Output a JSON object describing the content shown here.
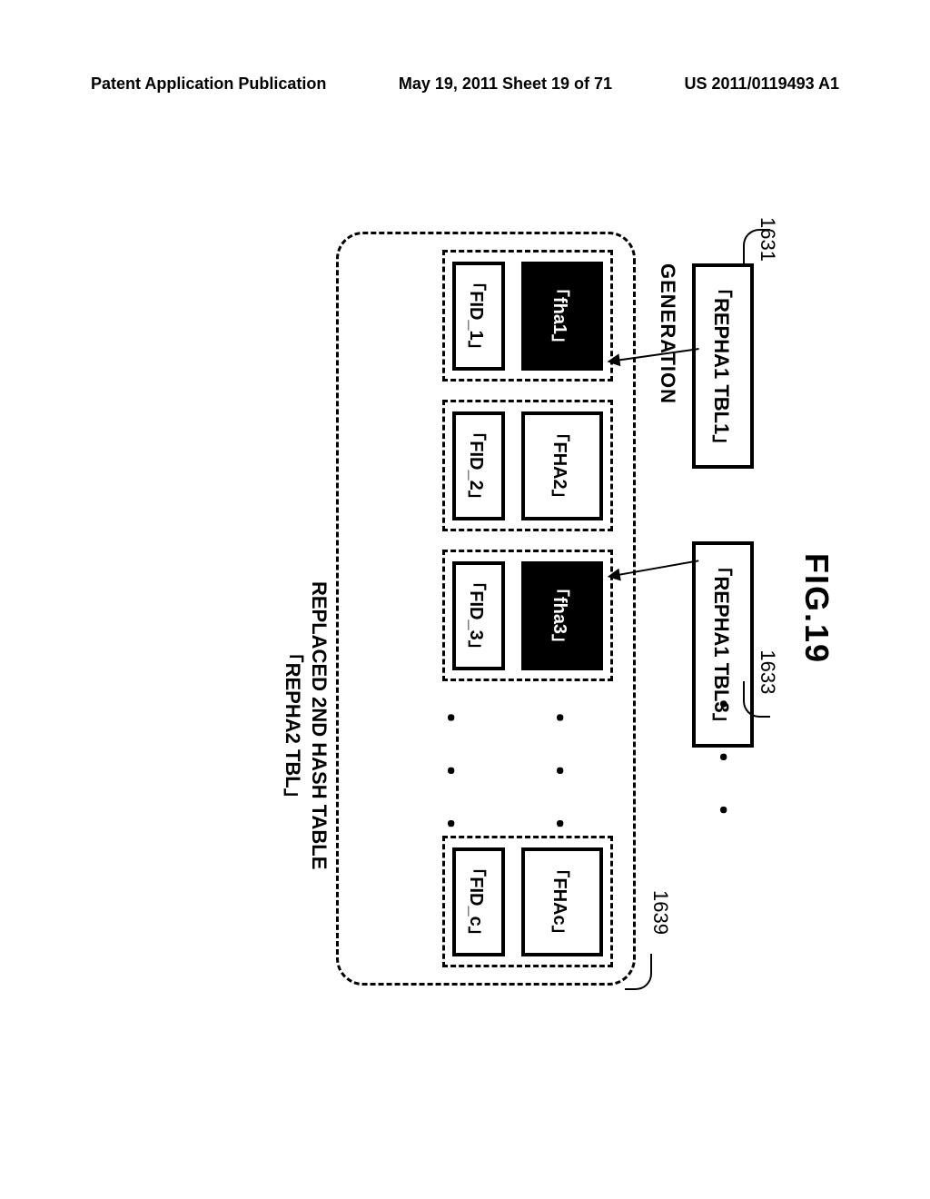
{
  "header": {
    "left": "Patent Application Publication",
    "center": "May 19, 2011  Sheet 19 of 71",
    "right": "US 2011/0119493 A1"
  },
  "figure": {
    "label": "FIG.19",
    "topBoxes": {
      "b1": {
        "label": "「REPHA1 TBL1」",
        "tag": "1631"
      },
      "b2": {
        "label": "「REPHA1 TBL3」",
        "tag": "1633"
      }
    },
    "outerTag": "1639",
    "generationLabel": "GENERATION",
    "dots": "・ ・ ・",
    "columns": {
      "c1": {
        "hash": "「fha1」",
        "fid": "「FID_1」",
        "dark": true
      },
      "c2": {
        "hash": "「FHA2」",
        "fid": "「FID_2」",
        "dark": false
      },
      "c3": {
        "hash": "「fha3」",
        "fid": "「FID_3」",
        "dark": true
      },
      "c_last": {
        "hash": "「FHAc」",
        "fid": "「FID_c」",
        "dark": false
      }
    },
    "outerCaption1": "REPLACED 2ND HASH TABLE",
    "outerCaption2": "「REPHA2 TBL」"
  }
}
